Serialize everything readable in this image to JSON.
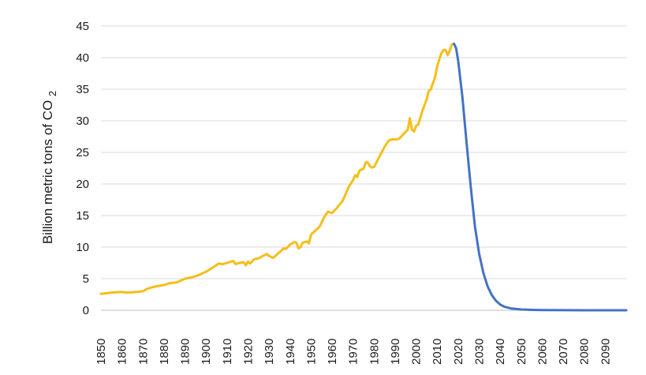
{
  "chart_data": {
    "type": "line",
    "title": "",
    "xlabel": "",
    "ylabel": "Billion metric tons of CO",
    "ylabel_subscript": "2",
    "xlim": [
      1850,
      2100
    ],
    "ylim": [
      0,
      45
    ],
    "y_ticks": [
      "0",
      "5",
      "10",
      "15",
      "20",
      "25",
      "30",
      "35",
      "40",
      "45"
    ],
    "x_ticks": [
      "1850",
      "1860",
      "1870",
      "1880",
      "1890",
      "1900",
      "1910",
      "1920",
      "1930",
      "1940",
      "1950",
      "1960",
      "1970",
      "1980",
      "1990",
      "2000",
      "2010",
      "2020",
      "2030",
      "2040",
      "2050",
      "2060",
      "2070",
      "2080",
      "2090"
    ],
    "grid": true,
    "legend": "none",
    "series": [
      {
        "color": "#F5BE19",
        "points": [
          [
            1850,
            2.6
          ],
          [
            1855,
            2.8
          ],
          [
            1860,
            2.9
          ],
          [
            1862,
            2.8
          ],
          [
            1865,
            2.85
          ],
          [
            1870,
            3.0
          ],
          [
            1872,
            3.4
          ],
          [
            1875,
            3.7
          ],
          [
            1880,
            4.0
          ],
          [
            1883,
            4.3
          ],
          [
            1886,
            4.4
          ],
          [
            1888,
            4.7
          ],
          [
            1890,
            5.0
          ],
          [
            1893,
            5.2
          ],
          [
            1896,
            5.5
          ],
          [
            1900,
            6.1
          ],
          [
            1903,
            6.7
          ],
          [
            1906,
            7.4
          ],
          [
            1908,
            7.3
          ],
          [
            1910,
            7.5
          ],
          [
            1913,
            7.8
          ],
          [
            1914,
            7.3
          ],
          [
            1916,
            7.5
          ],
          [
            1918,
            7.6
          ],
          [
            1919,
            7.1
          ],
          [
            1920,
            7.7
          ],
          [
            1921,
            7.4
          ],
          [
            1923,
            8.1
          ],
          [
            1925,
            8.2
          ],
          [
            1927,
            8.6
          ],
          [
            1929,
            8.9
          ],
          [
            1930,
            8.6
          ],
          [
            1932,
            8.3
          ],
          [
            1935,
            9.2
          ],
          [
            1937,
            9.8
          ],
          [
            1938,
            9.7
          ],
          [
            1940,
            10.4
          ],
          [
            1942,
            10.8
          ],
          [
            1943,
            10.7
          ],
          [
            1944,
            9.8
          ],
          [
            1945,
            10.0
          ],
          [
            1946,
            10.7
          ],
          [
            1948,
            10.9
          ],
          [
            1949,
            10.6
          ],
          [
            1950,
            12.0
          ],
          [
            1952,
            12.6
          ],
          [
            1954,
            13.2
          ],
          [
            1956,
            14.6
          ],
          [
            1958,
            15.6
          ],
          [
            1960,
            15.4
          ],
          [
            1962,
            16.1
          ],
          [
            1965,
            17.3
          ],
          [
            1968,
            19.6
          ],
          [
            1970,
            20.6
          ],
          [
            1971,
            21.4
          ],
          [
            1972,
            21.1
          ],
          [
            1973,
            22.1
          ],
          [
            1974,
            22.3
          ],
          [
            1975,
            22.4
          ],
          [
            1976,
            23.4
          ],
          [
            1977,
            23.4
          ],
          [
            1978,
            22.8
          ],
          [
            1979,
            22.6
          ],
          [
            1980,
            22.7
          ],
          [
            1982,
            24.0
          ],
          [
            1985,
            25.9
          ],
          [
            1987,
            26.9
          ],
          [
            1989,
            27.1
          ],
          [
            1990,
            27.0
          ],
          [
            1992,
            27.2
          ],
          [
            1994,
            27.9
          ],
          [
            1996,
            28.6
          ],
          [
            1997,
            30.4
          ],
          [
            1998,
            28.6
          ],
          [
            1999,
            28.3
          ],
          [
            2000,
            29.2
          ],
          [
            2001,
            29.4
          ],
          [
            2003,
            31.6
          ],
          [
            2005,
            33.4
          ],
          [
            2006,
            34.7
          ],
          [
            2007,
            35.0
          ],
          [
            2009,
            36.9
          ],
          [
            2010,
            38.6
          ],
          [
            2011,
            39.7
          ],
          [
            2012,
            40.7
          ],
          [
            2013,
            41.2
          ],
          [
            2014,
            41.2
          ],
          [
            2015,
            40.4
          ],
          [
            2016,
            41.1
          ],
          [
            2017,
            42.1
          ],
          [
            2018,
            42.2
          ]
        ]
      },
      {
        "color": "#4472C4",
        "points": [
          [
            2018,
            42.2
          ],
          [
            2019,
            41.5
          ],
          [
            2020,
            39.5
          ],
          [
            2022,
            33.8
          ],
          [
            2024,
            26.5
          ],
          [
            2026,
            19.5
          ],
          [
            2028,
            13.2
          ],
          [
            2030,
            8.9
          ],
          [
            2032,
            5.9
          ],
          [
            2034,
            3.8
          ],
          [
            2036,
            2.4
          ],
          [
            2038,
            1.5
          ],
          [
            2040,
            0.9
          ],
          [
            2042,
            0.55
          ],
          [
            2045,
            0.3
          ],
          [
            2050,
            0.12
          ],
          [
            2055,
            0.06
          ],
          [
            2060,
            0.03
          ],
          [
            2070,
            0.01
          ],
          [
            2080,
            0.0
          ],
          [
            2090,
            0.0
          ],
          [
            2100,
            0.0
          ]
        ]
      }
    ]
  }
}
